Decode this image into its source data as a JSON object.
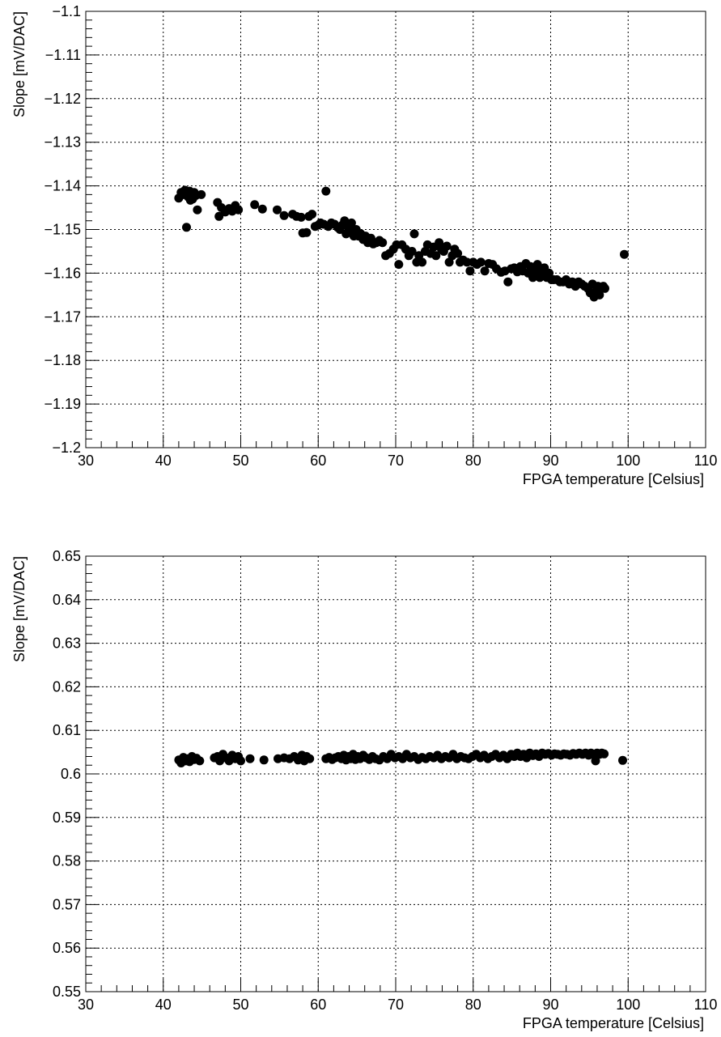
{
  "chart_data": [
    {
      "type": "scatter",
      "xlabel": "FPGA temperature [Celsius]",
      "ylabel": "Slope [mV/DAC]",
      "xlim": [
        30,
        110
      ],
      "ylim": [
        -1.2,
        -1.1
      ],
      "xticks": [
        30,
        40,
        50,
        60,
        70,
        80,
        90,
        100,
        110
      ],
      "xtick_labels": [
        "30",
        "40",
        "50",
        "60",
        "70",
        "80",
        "90",
        "100",
        "110"
      ],
      "yticks": [
        -1.2,
        -1.19,
        -1.18,
        -1.17,
        -1.16,
        -1.15,
        -1.14,
        -1.13,
        -1.12,
        -1.11,
        -1.1
      ],
      "ytick_labels": [
        "−1.2",
        "−1.19",
        "−1.18",
        "−1.17",
        "−1.16",
        "−1.15",
        "−1.14",
        "−1.13",
        "−1.12",
        "−1.11",
        "−1.1"
      ],
      "grid": true,
      "marker_color": "#000000",
      "points": [
        [
          42.0,
          -1.1428
        ],
        [
          42.3,
          -1.1415
        ],
        [
          42.6,
          -1.142
        ],
        [
          42.8,
          -1.141
        ],
        [
          43.0,
          -1.1413
        ],
        [
          43.2,
          -1.1425
        ],
        [
          43.4,
          -1.1412
        ],
        [
          43.6,
          -1.1418
        ],
        [
          43.8,
          -1.143
        ],
        [
          44.0,
          -1.1415
        ],
        [
          44.2,
          -1.1422
        ],
        [
          44.4,
          -1.1455
        ],
        [
          44.9,
          -1.142
        ],
        [
          43.0,
          -1.1495
        ],
        [
          43.5,
          -1.1433
        ],
        [
          47.0,
          -1.1438
        ],
        [
          47.2,
          -1.147
        ],
        [
          47.5,
          -1.145
        ],
        [
          48.0,
          -1.146
        ],
        [
          48.5,
          -1.1452
        ],
        [
          48.9,
          -1.1458
        ],
        [
          49.3,
          -1.1445
        ],
        [
          49.7,
          -1.1455
        ],
        [
          51.8,
          -1.1443
        ],
        [
          52.8,
          -1.1453
        ],
        [
          54.7,
          -1.1455
        ],
        [
          55.6,
          -1.1468
        ],
        [
          56.7,
          -1.1465
        ],
        [
          57.2,
          -1.147
        ],
        [
          57.8,
          -1.1472
        ],
        [
          58.0,
          -1.1508
        ],
        [
          58.5,
          -1.1507
        ],
        [
          58.8,
          -1.147
        ],
        [
          59.2,
          -1.1465
        ],
        [
          59.6,
          -1.1493
        ],
        [
          60.0,
          -1.149
        ],
        [
          60.3,
          -1.1485
        ],
        [
          60.7,
          -1.1488
        ],
        [
          61.0,
          -1.1412
        ],
        [
          61.3,
          -1.1493
        ],
        [
          61.7,
          -1.1485
        ],
        [
          62.1,
          -1.1488
        ],
        [
          62.5,
          -1.1495
        ],
        [
          62.8,
          -1.15
        ],
        [
          63.1,
          -1.149
        ],
        [
          63.4,
          -1.148
        ],
        [
          63.6,
          -1.151
        ],
        [
          63.9,
          -1.1495
        ],
        [
          64.1,
          -1.1503
        ],
        [
          64.3,
          -1.1485
        ],
        [
          64.6,
          -1.1515
        ],
        [
          64.9,
          -1.15
        ],
        [
          65.2,
          -1.1515
        ],
        [
          65.5,
          -1.151
        ],
        [
          65.8,
          -1.1523
        ],
        [
          66.1,
          -1.1515
        ],
        [
          66.4,
          -1.153
        ],
        [
          66.8,
          -1.152
        ],
        [
          67.1,
          -1.1533
        ],
        [
          67.5,
          -1.153
        ],
        [
          67.9,
          -1.1525
        ],
        [
          68.3,
          -1.153
        ],
        [
          68.7,
          -1.156
        ],
        [
          69.2,
          -1.1555
        ],
        [
          69.7,
          -1.1545
        ],
        [
          70.1,
          -1.1535
        ],
        [
          70.4,
          -1.158
        ],
        [
          70.8,
          -1.1535
        ],
        [
          71.3,
          -1.1545
        ],
        [
          71.7,
          -1.156
        ],
        [
          72.1,
          -1.155
        ],
        [
          72.4,
          -1.151
        ],
        [
          72.7,
          -1.1575
        ],
        [
          73.0,
          -1.156
        ],
        [
          73.4,
          -1.1575
        ],
        [
          73.8,
          -1.155
        ],
        [
          74.1,
          -1.1535
        ],
        [
          74.5,
          -1.1555
        ],
        [
          74.9,
          -1.154
        ],
        [
          75.2,
          -1.156
        ],
        [
          75.6,
          -1.153
        ],
        [
          75.9,
          -1.1545
        ],
        [
          76.2,
          -1.155
        ],
        [
          76.6,
          -1.1538
        ],
        [
          76.9,
          -1.1575
        ],
        [
          77.3,
          -1.156
        ],
        [
          77.6,
          -1.1545
        ],
        [
          78.0,
          -1.1555
        ],
        [
          78.3,
          -1.1575
        ],
        [
          78.7,
          -1.157
        ],
        [
          79.2,
          -1.1575
        ],
        [
          79.6,
          -1.1595
        ],
        [
          80.0,
          -1.1575
        ],
        [
          80.5,
          -1.158
        ],
        [
          81.0,
          -1.1575
        ],
        [
          81.5,
          -1.1595
        ],
        [
          82.0,
          -1.1578
        ],
        [
          82.5,
          -1.158
        ],
        [
          83.0,
          -1.159
        ],
        [
          83.6,
          -1.1598
        ],
        [
          84.1,
          -1.1595
        ],
        [
          84.5,
          -1.162
        ],
        [
          84.9,
          -1.159
        ],
        [
          85.3,
          -1.1588
        ],
        [
          85.7,
          -1.1597
        ],
        [
          86.1,
          -1.1585
        ],
        [
          86.4,
          -1.1595
        ],
        [
          86.8,
          -1.1578
        ],
        [
          87.1,
          -1.16
        ],
        [
          87.4,
          -1.1585
        ],
        [
          87.7,
          -1.161
        ],
        [
          88.0,
          -1.1595
        ],
        [
          88.3,
          -1.158
        ],
        [
          88.6,
          -1.161
        ],
        [
          88.9,
          -1.1595
        ],
        [
          89.2,
          -1.1588
        ],
        [
          89.5,
          -1.161
        ],
        [
          89.8,
          -1.16
        ],
        [
          90.1,
          -1.1615
        ],
        [
          90.4,
          -1.1615
        ],
        [
          90.8,
          -1.1615
        ],
        [
          91.2,
          -1.162
        ],
        [
          91.6,
          -1.162
        ],
        [
          92.0,
          -1.1615
        ],
        [
          92.4,
          -1.1625
        ],
        [
          92.8,
          -1.162
        ],
        [
          93.2,
          -1.163
        ],
        [
          93.6,
          -1.162
        ],
        [
          94.0,
          -1.1625
        ],
        [
          94.4,
          -1.163
        ],
        [
          94.8,
          -1.1635
        ],
        [
          95.1,
          -1.1645
        ],
        [
          95.4,
          -1.1625
        ],
        [
          95.6,
          -1.1655
        ],
        [
          95.9,
          -1.164
        ],
        [
          96.1,
          -1.163
        ],
        [
          96.3,
          -1.165
        ],
        [
          96.5,
          -1.1635
        ],
        [
          96.8,
          -1.163
        ],
        [
          97.0,
          -1.1635
        ],
        [
          99.5,
          -1.1557
        ]
      ]
    },
    {
      "type": "scatter",
      "xlabel": "FPGA temperature [Celsius]",
      "ylabel": "Slope [mV/DAC]",
      "xlim": [
        30,
        110
      ],
      "ylim": [
        0.55,
        0.65
      ],
      "xticks": [
        30,
        40,
        50,
        60,
        70,
        80,
        90,
        100,
        110
      ],
      "xtick_labels": [
        "30",
        "40",
        "50",
        "60",
        "70",
        "80",
        "90",
        "100",
        "110"
      ],
      "yticks": [
        0.55,
        0.56,
        0.57,
        0.58,
        0.59,
        0.6,
        0.61,
        0.62,
        0.63,
        0.64,
        0.65
      ],
      "ytick_labels": [
        "0.55",
        "0.56",
        "0.57",
        "0.58",
        "0.59",
        "0.6",
        "0.61",
        "0.62",
        "0.63",
        "0.64",
        "0.65"
      ],
      "grid": true,
      "marker_color": "#000000",
      "points": [
        [
          42.0,
          0.6032
        ],
        [
          42.3,
          0.6025
        ],
        [
          42.6,
          0.6038
        ],
        [
          42.9,
          0.603
        ],
        [
          43.1,
          0.6035
        ],
        [
          43.4,
          0.6028
        ],
        [
          43.7,
          0.604
        ],
        [
          44.0,
          0.6033
        ],
        [
          44.3,
          0.6036
        ],
        [
          44.7,
          0.603
        ],
        [
          46.6,
          0.6037
        ],
        [
          47.0,
          0.604
        ],
        [
          47.3,
          0.603
        ],
        [
          47.7,
          0.6045
        ],
        [
          48.1,
          0.6037
        ],
        [
          48.5,
          0.603
        ],
        [
          48.9,
          0.6043
        ],
        [
          49.3,
          0.6035
        ],
        [
          49.7,
          0.604
        ],
        [
          50.0,
          0.603
        ],
        [
          51.2,
          0.6035
        ],
        [
          53.0,
          0.6032
        ],
        [
          54.8,
          0.6035
        ],
        [
          55.6,
          0.6037
        ],
        [
          56.3,
          0.6035
        ],
        [
          56.9,
          0.604
        ],
        [
          57.4,
          0.6032
        ],
        [
          57.9,
          0.6043
        ],
        [
          58.2,
          0.603
        ],
        [
          58.5,
          0.604
        ],
        [
          58.9,
          0.6035
        ],
        [
          61.0,
          0.6035
        ],
        [
          61.4,
          0.6038
        ],
        [
          61.8,
          0.6033
        ],
        [
          62.2,
          0.6037
        ],
        [
          62.6,
          0.604
        ],
        [
          63.0,
          0.6035
        ],
        [
          63.3,
          0.6043
        ],
        [
          63.6,
          0.6032
        ],
        [
          63.9,
          0.604
        ],
        [
          64.2,
          0.6035
        ],
        [
          64.5,
          0.6045
        ],
        [
          64.8,
          0.6033
        ],
        [
          65.1,
          0.604
        ],
        [
          65.4,
          0.6035
        ],
        [
          65.8,
          0.6043
        ],
        [
          66.2,
          0.6037
        ],
        [
          66.6,
          0.6033
        ],
        [
          67.0,
          0.604
        ],
        [
          67.4,
          0.6035
        ],
        [
          67.9,
          0.6032
        ],
        [
          68.4,
          0.604
        ],
        [
          68.9,
          0.6035
        ],
        [
          69.4,
          0.6045
        ],
        [
          69.9,
          0.6037
        ],
        [
          70.4,
          0.604
        ],
        [
          70.9,
          0.6035
        ],
        [
          71.4,
          0.6045
        ],
        [
          71.9,
          0.6037
        ],
        [
          72.4,
          0.604
        ],
        [
          72.9,
          0.6033
        ],
        [
          73.4,
          0.6038
        ],
        [
          73.9,
          0.6035
        ],
        [
          74.4,
          0.604
        ],
        [
          74.9,
          0.6037
        ],
        [
          75.4,
          0.6043
        ],
        [
          75.9,
          0.6035
        ],
        [
          76.4,
          0.604
        ],
        [
          76.9,
          0.6037
        ],
        [
          77.4,
          0.6045
        ],
        [
          77.9,
          0.6035
        ],
        [
          78.4,
          0.604
        ],
        [
          78.9,
          0.6037
        ],
        [
          79.4,
          0.6035
        ],
        [
          79.9,
          0.604
        ],
        [
          80.4,
          0.6045
        ],
        [
          80.9,
          0.6037
        ],
        [
          81.4,
          0.6043
        ],
        [
          81.9,
          0.6035
        ],
        [
          82.4,
          0.604
        ],
        [
          82.9,
          0.6045
        ],
        [
          83.4,
          0.6037
        ],
        [
          83.9,
          0.6043
        ],
        [
          84.4,
          0.6035
        ],
        [
          84.9,
          0.6045
        ],
        [
          85.3,
          0.604
        ],
        [
          85.7,
          0.6048
        ],
        [
          86.1,
          0.604
        ],
        [
          86.5,
          0.6045
        ],
        [
          86.9,
          0.6037
        ],
        [
          87.3,
          0.6048
        ],
        [
          87.7,
          0.6042
        ],
        [
          88.1,
          0.6046
        ],
        [
          88.5,
          0.604
        ],
        [
          88.9,
          0.6048
        ],
        [
          89.3,
          0.6045
        ],
        [
          89.7,
          0.6047
        ],
        [
          90.1,
          0.6043
        ],
        [
          90.5,
          0.6046
        ],
        [
          90.9,
          0.6045
        ],
        [
          91.3,
          0.6043
        ],
        [
          91.7,
          0.6046
        ],
        [
          92.1,
          0.6045
        ],
        [
          92.5,
          0.6043
        ],
        [
          92.9,
          0.6047
        ],
        [
          93.3,
          0.6045
        ],
        [
          93.7,
          0.6048
        ],
        [
          94.1,
          0.6045
        ],
        [
          94.5,
          0.6048
        ],
        [
          94.9,
          0.6043
        ],
        [
          95.2,
          0.6048
        ],
        [
          95.5,
          0.6045
        ],
        [
          95.8,
          0.603
        ],
        [
          96.0,
          0.6048
        ],
        [
          96.3,
          0.6045
        ],
        [
          96.6,
          0.6048
        ],
        [
          96.9,
          0.6046
        ],
        [
          99.3,
          0.6031
        ]
      ]
    }
  ]
}
